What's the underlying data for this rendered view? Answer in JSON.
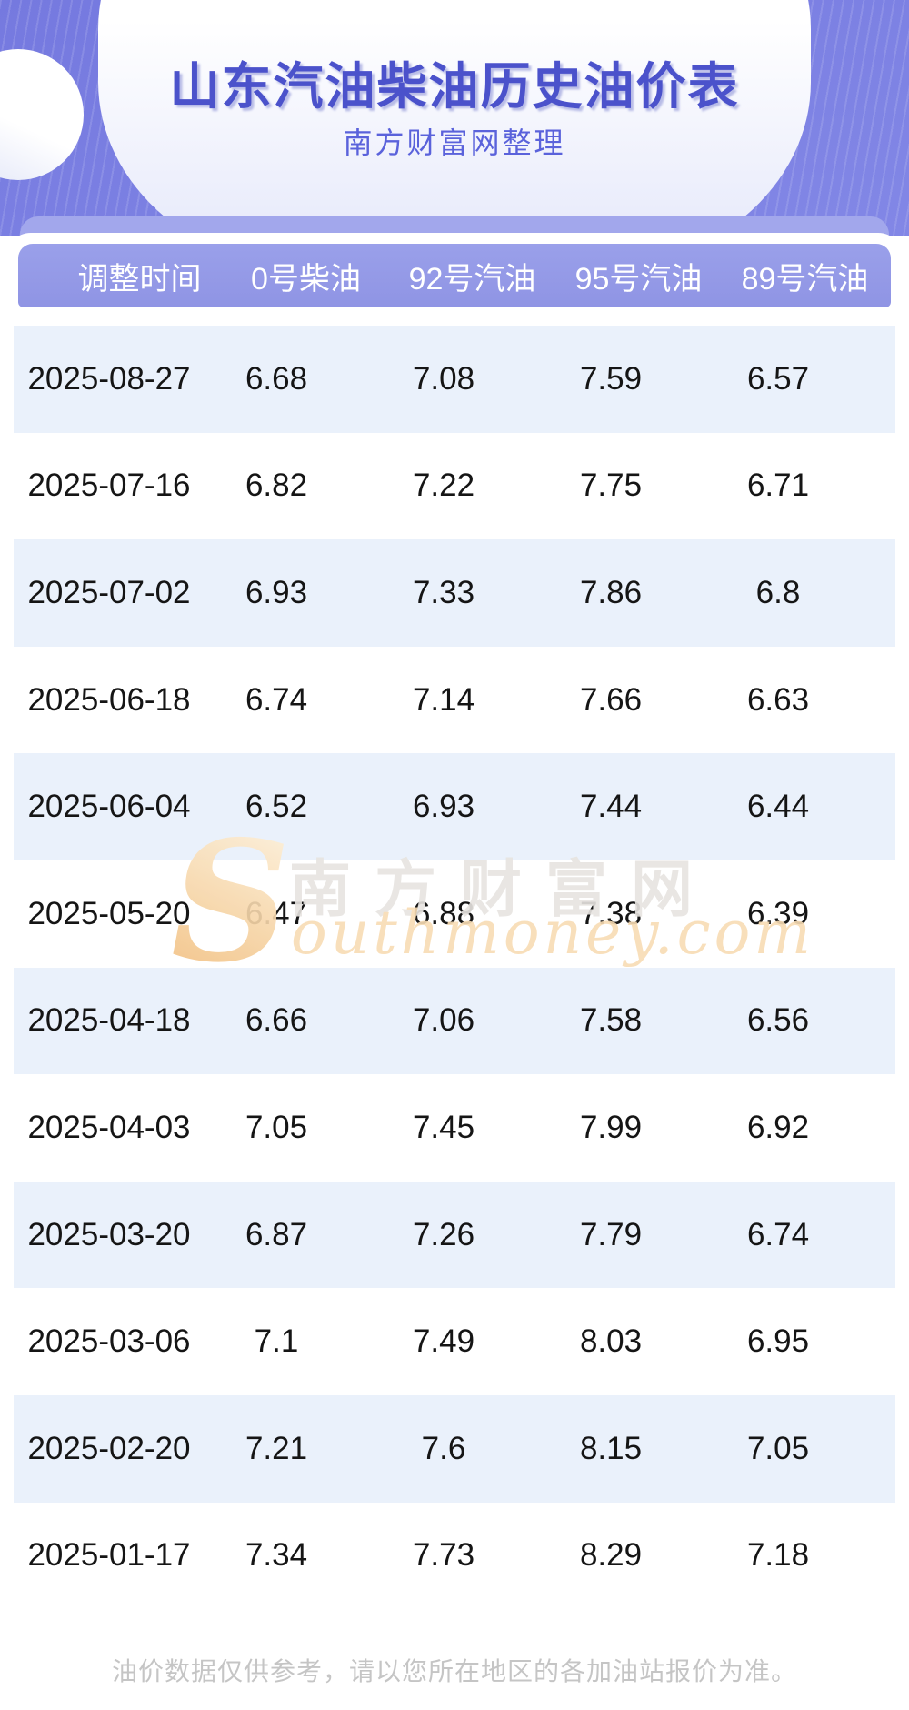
{
  "hero": {
    "title": "山东汽油柴油历史油价表",
    "subtitle": "南方财富网整理"
  },
  "table": {
    "columns": [
      "调整时间",
      "0号柴油",
      "92号汽油",
      "95号汽油",
      "89号汽油"
    ],
    "rows": [
      [
        "2025-08-27",
        "6.68",
        "7.08",
        "7.59",
        "6.57"
      ],
      [
        "2025-07-16",
        "6.82",
        "7.22",
        "7.75",
        "6.71"
      ],
      [
        "2025-07-02",
        "6.93",
        "7.33",
        "7.86",
        "6.8"
      ],
      [
        "2025-06-18",
        "6.74",
        "7.14",
        "7.66",
        "6.63"
      ],
      [
        "2025-06-04",
        "6.52",
        "6.93",
        "7.44",
        "6.44"
      ],
      [
        "2025-05-20",
        "6.47",
        "6.88",
        "7.38",
        "6.39"
      ],
      [
        "2025-04-18",
        "6.66",
        "7.06",
        "7.58",
        "6.56"
      ],
      [
        "2025-04-03",
        "7.05",
        "7.45",
        "7.99",
        "6.92"
      ],
      [
        "2025-03-20",
        "6.87",
        "7.26",
        "7.79",
        "6.74"
      ],
      [
        "2025-03-06",
        "7.1",
        "7.49",
        "8.03",
        "6.95"
      ],
      [
        "2025-02-20",
        "7.21",
        "7.6",
        "8.15",
        "7.05"
      ],
      [
        "2025-01-17",
        "7.34",
        "7.73",
        "8.29",
        "7.18"
      ]
    ]
  },
  "watermark": {
    "swoosh": "S",
    "cn_text": "南方财富网",
    "en_text": "outhmoney.com"
  },
  "footer": {
    "note": "油价数据仅供参考，请以您所在地区的各加油站报价为准。"
  },
  "colors": {
    "hero-bg": "#7579df",
    "title": "#4b52cb",
    "subtitle": "#5a62db",
    "backbar": "#a2a7ec",
    "header-bg": "#8f94e4",
    "header-text": "#ffffff",
    "row-alt": "#eaf1fb",
    "row-text": "#151515",
    "wm-gray": "#e7e4e0",
    "wm-peach": "#f8dcb4",
    "footer": "#c5c5c5"
  },
  "chart_data": {
    "type": "table",
    "title": "山东汽油柴油历史油价表",
    "subtitle": "南方财富网整理",
    "columns": [
      "调整时间",
      "0号柴油",
      "92号汽油",
      "95号汽油",
      "89号汽油"
    ],
    "rows": [
      [
        "2025-08-27",
        6.68,
        7.08,
        7.59,
        6.57
      ],
      [
        "2025-07-16",
        6.82,
        7.22,
        7.75,
        6.71
      ],
      [
        "2025-07-02",
        6.93,
        7.33,
        7.86,
        6.8
      ],
      [
        "2025-06-18",
        6.74,
        7.14,
        7.66,
        6.63
      ],
      [
        "2025-06-04",
        6.52,
        6.93,
        7.44,
        6.44
      ],
      [
        "2025-05-20",
        6.47,
        6.88,
        7.38,
        6.39
      ],
      [
        "2025-04-18",
        6.66,
        7.06,
        7.58,
        6.56
      ],
      [
        "2025-04-03",
        7.05,
        7.45,
        7.99,
        6.92
      ],
      [
        "2025-03-20",
        6.87,
        7.26,
        7.79,
        6.74
      ],
      [
        "2025-03-06",
        7.1,
        7.49,
        8.03,
        6.95
      ],
      [
        "2025-02-20",
        7.21,
        7.6,
        8.15,
        7.05
      ],
      [
        "2025-01-17",
        7.34,
        7.73,
        8.29,
        7.18
      ]
    ],
    "row_striping": "odd rows light blue #eaf1fb, even rows white",
    "note": "油价数据仅供参考，请以您所在地区的各加油站报价为准。"
  }
}
